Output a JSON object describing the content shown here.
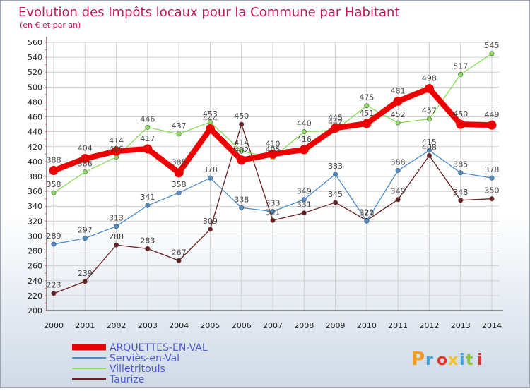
{
  "title": "Evolution des Impôts locaux pour la Commune par Habitant",
  "subtitle": "(en € et par an)",
  "logo_text": "Proxiti",
  "colors": {
    "background_top": "#ffffff",
    "background_bottom": "#cfd9e6",
    "title": "#c2185b",
    "grid": "#cfcfcf",
    "legend_text": "#4a5bd3",
    "axis_text": "#222222",
    "value_text": "#444444"
  },
  "chart_data": {
    "type": "line",
    "x": [
      "2000",
      "2001",
      "2002",
      "2003",
      "2004",
      "2005",
      "2006",
      "2007",
      "2008",
      "2009",
      "2010",
      "2011",
      "2012",
      "2013",
      "2014"
    ],
    "ylim": [
      200,
      560
    ],
    "ytick_step": 20,
    "grid": true,
    "legend_position": "bottom-left",
    "series": [
      {
        "name": "ARQUETTES-EN-VAL",
        "color": "#ee0000",
        "values": [
          388,
          404,
          414,
          417,
          385,
          444,
          402,
          410,
          416,
          445,
          451,
          481,
          498,
          450,
          449
        ]
      },
      {
        "name": "Serviès-en-Val",
        "color": "#4a8ccc",
        "values": [
          289,
          297,
          313,
          341,
          358,
          378,
          338,
          333,
          349,
          383,
          320,
          388,
          415,
          385,
          378
        ]
      },
      {
        "name": "Villetritouls",
        "color": "#88dd55",
        "values": [
          358,
          386,
          406,
          446,
          437,
          453,
          414,
          405,
          440,
          442,
          475,
          452,
          457,
          517,
          545
        ]
      },
      {
        "name": "Taurize",
        "color": "#6b1f1f",
        "values": [
          223,
          239,
          288,
          283,
          267,
          309,
          450,
          321,
          331,
          345,
          321,
          349,
          408,
          348,
          350
        ]
      }
    ]
  }
}
